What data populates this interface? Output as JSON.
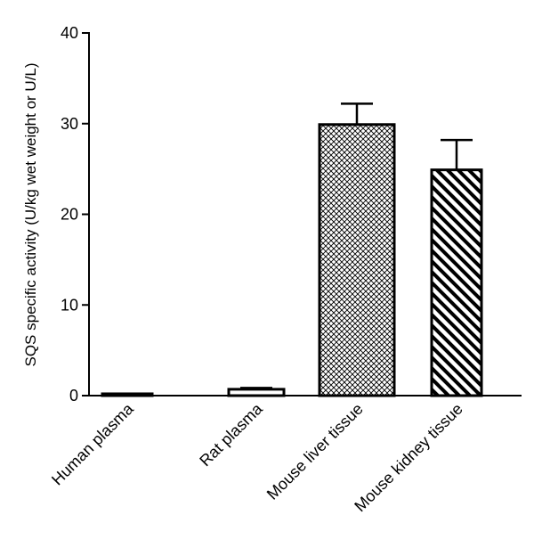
{
  "chart_data": {
    "type": "bar",
    "title": "",
    "xlabel": "",
    "ylabel": "SQS specific activity (U/kg wet weight or U/L)",
    "ylim": [
      0,
      40
    ],
    "yticks": [
      "0",
      "10",
      "20",
      "30",
      "40"
    ],
    "ytick_values": [
      0,
      10,
      20,
      30,
      40
    ],
    "categories": [
      "Human plasma",
      "Rat plasma",
      "Mouse liver tissue",
      "Mouse kidney tissue"
    ],
    "values": [
      0.2,
      0.7,
      29.9,
      24.9
    ],
    "errors": [
      0.05,
      0.15,
      2.3,
      3.3
    ],
    "fills": [
      "solid-black",
      "white",
      "crosshatch",
      "diagonal-stripe"
    ]
  }
}
